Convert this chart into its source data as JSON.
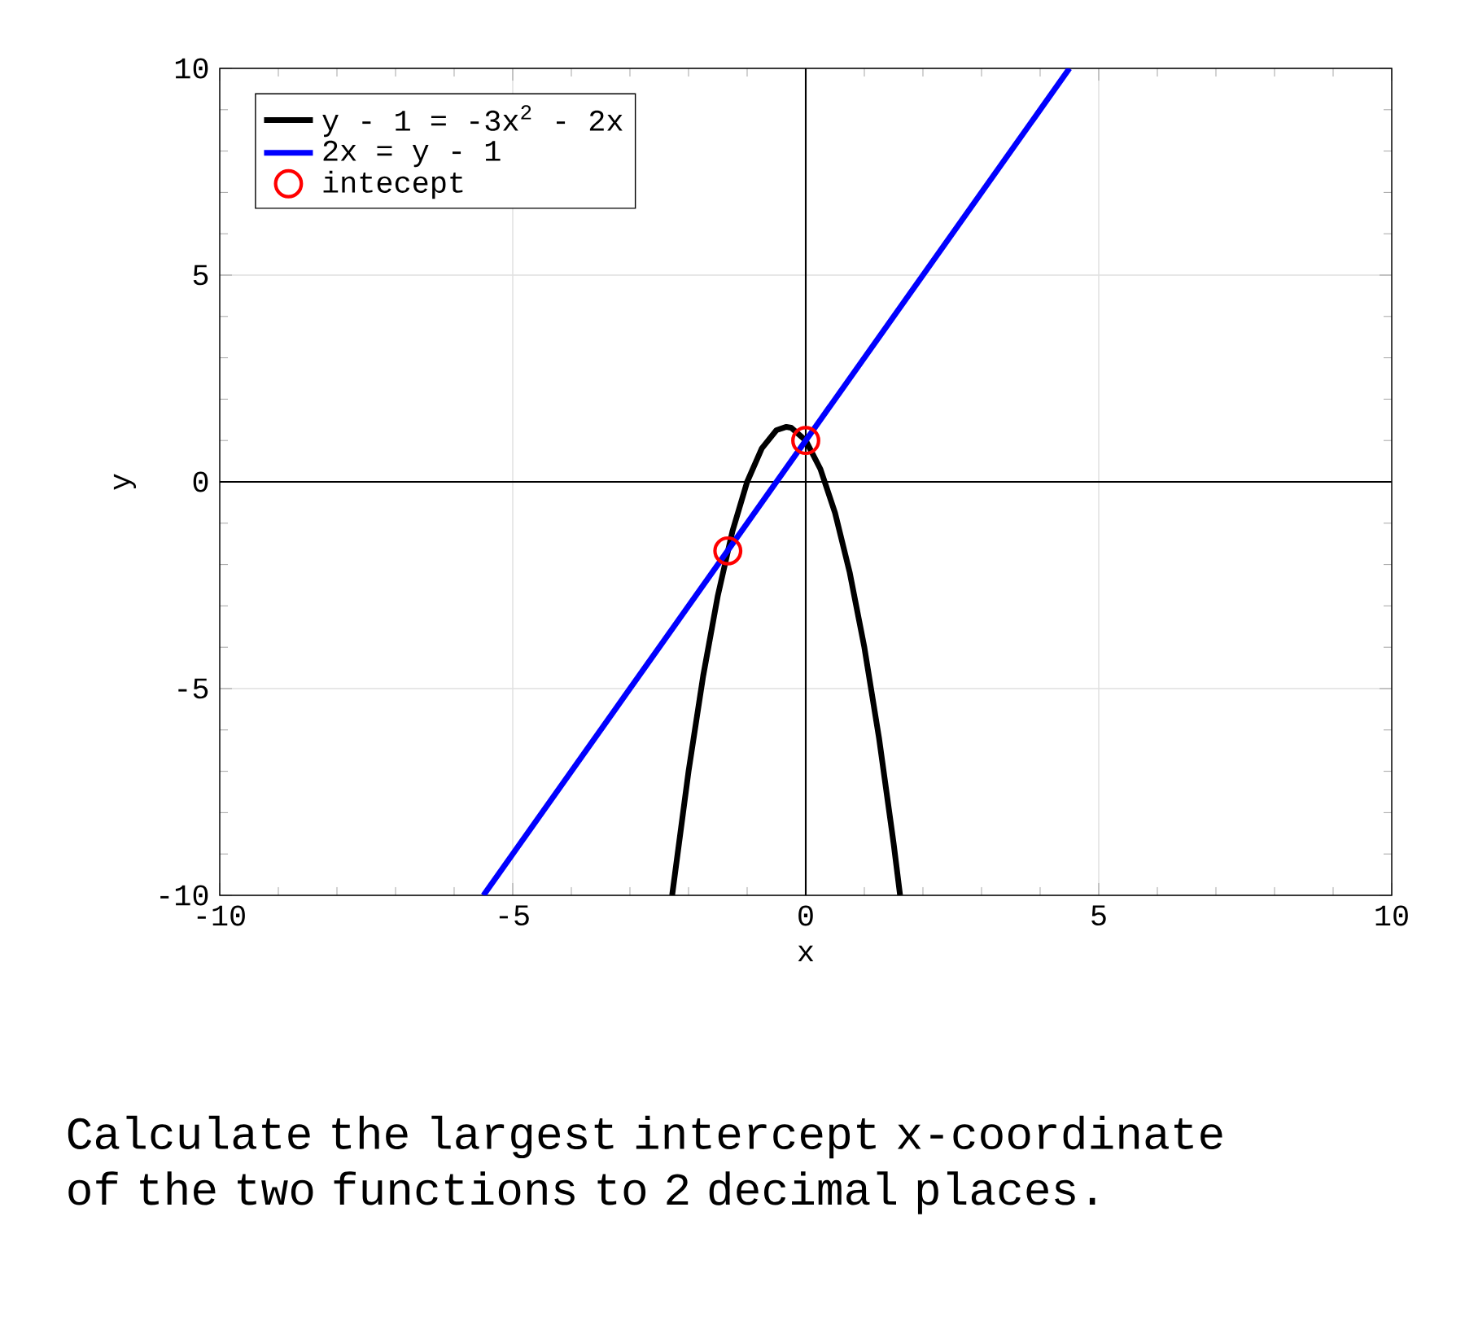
{
  "chart_data": {
    "type": "line",
    "xlabel": "x",
    "ylabel": "y",
    "xlim": [
      -10,
      10
    ],
    "ylim": [
      -10,
      10
    ],
    "xticks": [
      -10,
      -5,
      0,
      5,
      10
    ],
    "yticks": [
      -10,
      -5,
      0,
      5,
      10
    ],
    "grid": true,
    "legend": "top left",
    "series": [
      {
        "name": "y - 1 = -3x$^{2}$ - 2x",
        "color": "#000000",
        "x": [
          -2.28,
          -2,
          -1.75,
          -1.5,
          -1.25,
          -1,
          -0.75,
          -0.5,
          -0.33,
          -0.25,
          0,
          0.25,
          0.5,
          0.75,
          1,
          1.25,
          1.5,
          1.61
        ],
        "values": [
          -10,
          -7,
          -4.69,
          -2.75,
          -1.19,
          0,
          0.81,
          1.25,
          1.33,
          1.31,
          1,
          0.31,
          -0.75,
          -2.19,
          -4,
          -6.19,
          -8.75,
          -10
        ]
      },
      {
        "name": "2x = y - 1",
        "color": "#0000ff",
        "x": [
          -5.5,
          4.5
        ],
        "values": [
          -10,
          10
        ]
      },
      {
        "name": "intecept",
        "type": "scatter",
        "marker": "circle",
        "color": "#ff0000",
        "x": [
          -1.33,
          0
        ],
        "values": [
          -1.67,
          1
        ]
      }
    ],
    "annotations": [
      "Calculate the largest intercept x-coordinate of the two functions to 2 decimal places."
    ]
  }
}
